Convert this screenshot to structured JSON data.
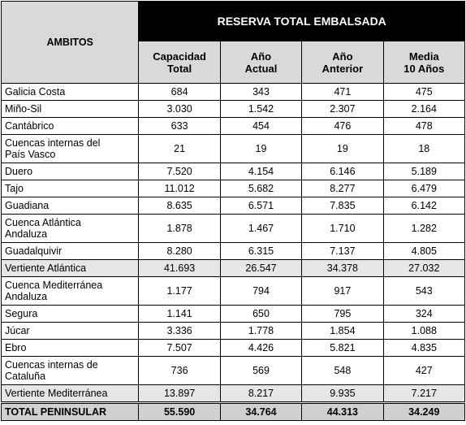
{
  "header": {
    "ambitos": "AMBITOS",
    "reserva": "RESERVA TOTAL EMBALSADA",
    "cols": [
      {
        "l1": "Capacidad",
        "l2": "Total"
      },
      {
        "l1": "Año",
        "l2": "Actual"
      },
      {
        "l1": "Año",
        "l2": "Anterior"
      },
      {
        "l1": "Media",
        "l2": "10 Años"
      }
    ]
  },
  "rows": [
    {
      "name": [
        "Galicia Costa"
      ],
      "values": [
        "684",
        "343",
        "471",
        "475"
      ]
    },
    {
      "name": [
        "Miño-Sil"
      ],
      "values": [
        "3.030",
        "1.542",
        "2.307",
        "2.164"
      ]
    },
    {
      "name": [
        "Cantábrico"
      ],
      "values": [
        "633",
        "454",
        "476",
        "478"
      ]
    },
    {
      "name": [
        "Cuencas internas del",
        "País Vasco"
      ],
      "values": [
        "21",
        "19",
        "19",
        "18"
      ]
    },
    {
      "name": [
        "Duero"
      ],
      "values": [
        "7.520",
        "4.154",
        "6.146",
        "5.189"
      ]
    },
    {
      "name": [
        "Tajo"
      ],
      "values": [
        "11.012",
        "5.682",
        "8.277",
        "6.479"
      ]
    },
    {
      "name": [
        "Guadiana"
      ],
      "values": [
        "8.635",
        "6.571",
        "7.835",
        "6.142"
      ]
    },
    {
      "name": [
        "Cuenca Atlántica",
        "Andaluza"
      ],
      "values": [
        "1.878",
        "1.467",
        "1.710",
        "1.282"
      ]
    },
    {
      "name": [
        "Guadalquivir"
      ],
      "values": [
        "8.280",
        "6.315",
        "7.137",
        "4.805"
      ]
    },
    {
      "name": [
        "Vertiente Atlántica"
      ],
      "values": [
        "41.693",
        "26.547",
        "34.378",
        "27.032"
      ],
      "subtotal": true
    },
    {
      "name": [
        "Cuenca Mediterránea",
        "Andaluza"
      ],
      "values": [
        "1.177",
        "794",
        "917",
        "543"
      ]
    },
    {
      "name": [
        "Segura"
      ],
      "values": [
        "1.141",
        "650",
        "795",
        "324"
      ]
    },
    {
      "name": [
        "Júcar"
      ],
      "values": [
        "3.336",
        "1.778",
        "1.854",
        "1.088"
      ]
    },
    {
      "name": [
        "Ebro"
      ],
      "values": [
        "7.507",
        "4.426",
        "5.821",
        "4.835"
      ]
    },
    {
      "name": [
        "Cuencas internas de",
        "Cataluña"
      ],
      "values": [
        "736",
        "569",
        "548",
        "427"
      ]
    },
    {
      "name": [
        "Vertiente Mediterránea"
      ],
      "values": [
        "13.897",
        "8.217",
        "9.935",
        "7.217"
      ],
      "subtotal": true
    }
  ],
  "total": {
    "name": "TOTAL PENINSULAR",
    "values": [
      "55.590",
      "34.764",
      "44.313",
      "34.249"
    ]
  }
}
